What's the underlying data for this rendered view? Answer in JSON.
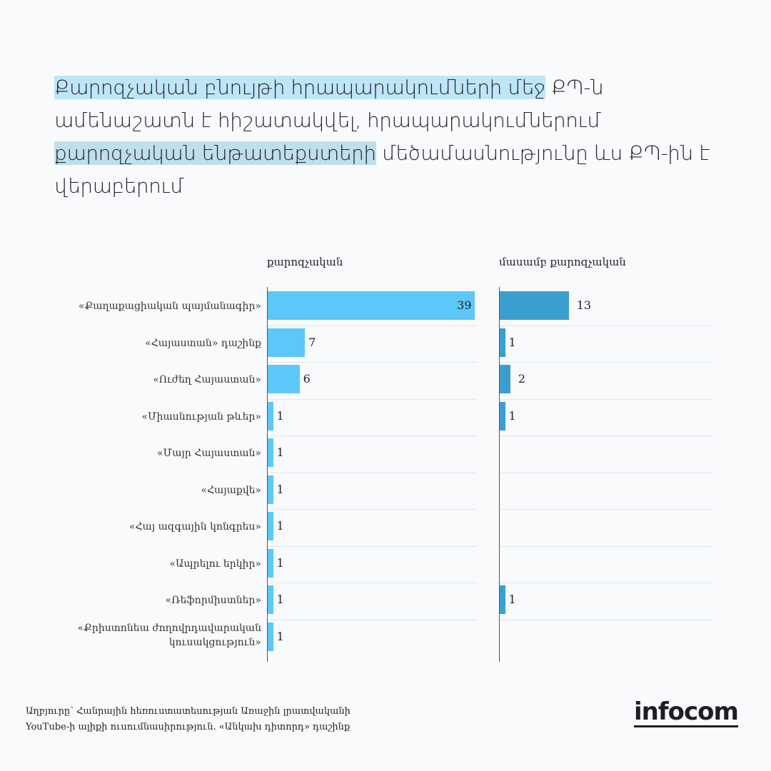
{
  "title": {
    "part1": "Քարոզչական բնույթի հրապարակումների մեջ",
    "part2": " ՔՊ-ն ամենաշատն է հիշատակվել, հրապարակումներում ",
    "part3": "քարոզչական ենթատեքստերի",
    "part4": " մեծամասնությունը ևս ՔՊ-ին է վերաբերում"
  },
  "chart_data": {
    "type": "bar",
    "orientation": "horizontal",
    "categories": [
      "«Քաղաքացիական պայմանագիր»",
      "«Հայաստան» դաշինք",
      "«Ուժեղ Հայաստան»",
      "«Միասնության թևեր»",
      "«Մայր Հայաստան»",
      "«Հայաքվե»",
      "«Հայ ազգային կոնգրես»",
      "«Ապրելու երկիր»",
      "«Ռեֆորմիստներ»",
      "«Քրիստոնեա ժողովրդավարական կուսակցություն»"
    ],
    "series": [
      {
        "name": "քարոզչական",
        "values": [
          39,
          7,
          6,
          1,
          1,
          1,
          1,
          1,
          1,
          1
        ],
        "color": "#5cc8f8"
      },
      {
        "name": "մասամբ քարոզչական",
        "values": [
          13,
          1,
          2,
          1,
          null,
          null,
          null,
          null,
          1,
          null
        ],
        "color": "#3a9ecf"
      }
    ]
  },
  "footer": {
    "line1": "Աղբյուրը՝ Հանրային հեռուստատեսության Առաջին լրատվականի",
    "line2": "YouTube-ի ալիքի ուսումնասիրություն. «Անկախ դիտորդ» դաշինք"
  },
  "logo": "infocom"
}
